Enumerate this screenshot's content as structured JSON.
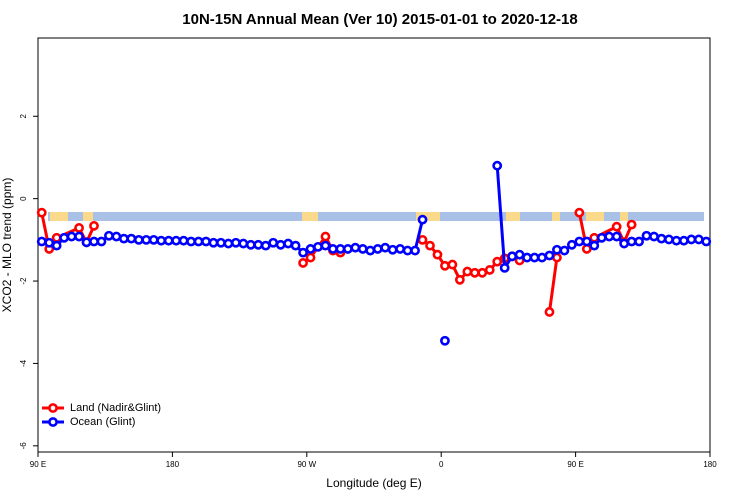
{
  "chart_data": {
    "type": "line",
    "title": "10N-15N Annual Mean (Ver 10)   2015-01-01 to 2020-12-18",
    "xlabel": "Longitude (deg E)",
    "ylabel": "XCO2 - MLO trend (ppm)",
    "xlim": [
      90,
      540
    ],
    "ylim": [
      -6.15,
      3.9
    ],
    "xticks": [
      {
        "value": 90,
        "label": "90 E"
      },
      180,
      {
        "value": 270,
        "label": "90 W"
      },
      {
        "value": 360,
        "label": "0"
      },
      {
        "value": 450,
        "label": "90 E"
      },
      {
        "value": 540,
        "label": "180"
      }
    ],
    "yticks": [
      -6,
      -4,
      -2,
      0,
      2
    ],
    "legend": "bottom-left",
    "series": [
      {
        "name": "Land (Nadir&Glint)",
        "color": "#ff0000",
        "x": [
          92.5,
          97.5,
          102.5,
          117.5,
          122.5,
          127.5,
          132.5,
          267.5,
          272.5,
          282.5,
          287.5,
          292.5,
          297.5,
          347.5,
          352.5,
          357.5,
          362.5,
          367.5,
          372.5,
          377.5,
          382.5,
          387.5,
          392.5,
          397.5,
          402.5,
          407.5,
          412.5,
          417.5,
          432.5,
          437.5,
          442.5,
          452.5,
          457.5,
          462.5,
          477.5,
          482.5,
          487.5
        ],
        "values": [
          -0.34,
          -1.22,
          -0.95,
          -0.71,
          -1.06,
          -0.66,
          null,
          -1.56,
          -1.43,
          -0.92,
          -1.26,
          -1.31,
          null,
          -1.0,
          -1.14,
          -1.36,
          -1.63,
          -1.6,
          -1.97,
          -1.77,
          -1.8,
          -1.8,
          -1.73,
          -1.53,
          -1.45,
          -1.4,
          -1.5,
          null,
          -2.75,
          -1.43,
          null,
          -0.34,
          -1.22,
          -0.95,
          -0.68,
          -1.06,
          -0.63
        ]
      },
      {
        "name": "Ocean (Glint)",
        "color": "#0000ff",
        "x": [
          92.5,
          97.5,
          102.5,
          107.5,
          112.5,
          117.5,
          122.5,
          127.5,
          132.5,
          137.5,
          142.5,
          147.5,
          152.5,
          157.5,
          162.5,
          167.5,
          172.5,
          177.5,
          182.5,
          187.5,
          192.5,
          197.5,
          202.5,
          207.5,
          212.5,
          217.5,
          222.5,
          227.5,
          232.5,
          237.5,
          242.5,
          247.5,
          252.5,
          257.5,
          262.5,
          267.5,
          272.5,
          277.5,
          282.5,
          287.5,
          292.5,
          297.5,
          302.5,
          307.5,
          312.5,
          317.5,
          322.5,
          327.5,
          332.5,
          337.5,
          342.5,
          347.5,
          352.5,
          357.5,
          362.5,
          367.5,
          372.5,
          377.5,
          382.5,
          387.5,
          392.5,
          397.5,
          402.5,
          407.5,
          412.5,
          417.5,
          422.5,
          427.5,
          432.5,
          437.5,
          442.5,
          447.5,
          452.5,
          457.5,
          462.5,
          467.5,
          472.5,
          477.5,
          482.5,
          487.5,
          492.5,
          497.5,
          502.5,
          507.5,
          512.5,
          517.5,
          522.5,
          527.5,
          532.5,
          537.5
        ],
        "values": [
          -1.04,
          -1.07,
          -1.14,
          -0.95,
          -0.92,
          -0.92,
          -1.06,
          -1.04,
          -1.04,
          -0.9,
          -0.92,
          -0.97,
          -0.97,
          -1.0,
          -1.0,
          -1.0,
          -1.02,
          -1.02,
          -1.02,
          -1.02,
          -1.04,
          -1.04,
          -1.04,
          -1.07,
          -1.07,
          -1.09,
          -1.07,
          -1.09,
          -1.12,
          -1.12,
          -1.14,
          -1.07,
          -1.12,
          -1.09,
          -1.14,
          -1.31,
          -1.22,
          -1.17,
          -1.14,
          -1.22,
          -1.22,
          -1.22,
          -1.19,
          -1.22,
          -1.26,
          -1.22,
          -1.19,
          -1.24,
          -1.22,
          -1.26,
          -1.26,
          -0.51,
          null,
          null,
          -3.45,
          null,
          null,
          null,
          null,
          null,
          null,
          0.8,
          -1.68,
          -1.4,
          -1.36,
          -1.43,
          -1.43,
          -1.43,
          -1.38,
          -1.24,
          -1.26,
          -1.12,
          -1.04,
          -1.04,
          -1.14,
          -0.95,
          -0.92,
          -0.92,
          -1.09,
          -1.04,
          -1.04,
          -0.9,
          -0.92,
          -0.97,
          -0.99,
          -1.02,
          -1.02,
          -0.99,
          -0.99,
          -1.04
        ]
      }
    ]
  }
}
